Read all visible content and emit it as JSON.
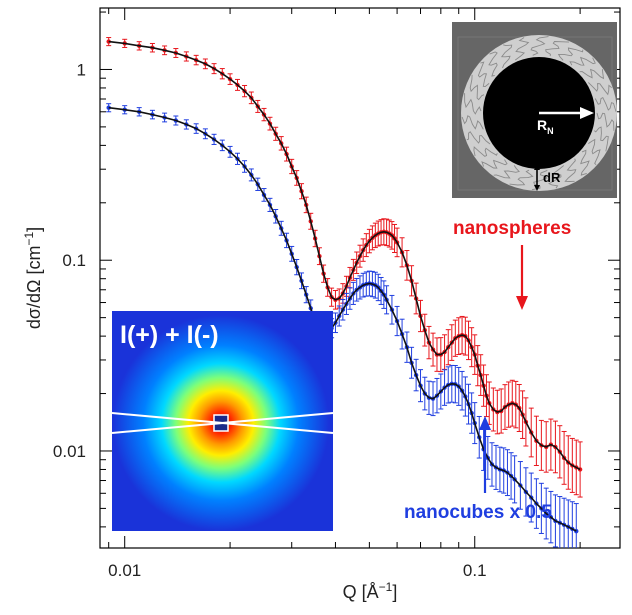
{
  "chart_data": {
    "type": "scatter",
    "xlabel": "Q [Å",
    "xlabel_exp": "−1",
    "xlabel_end": "]",
    "ylabel": "dσ/dΩ [cm",
    "ylabel_exp": "−1",
    "ylabel_end": "]",
    "x_scale": "log",
    "y_scale": "log",
    "xlim": [
      0.0085,
      0.26
    ],
    "ylim": [
      0.0031,
      2.1
    ],
    "x_ticks": [
      {
        "value": 0.01,
        "label": "0.01"
      },
      {
        "value": 0.1,
        "label": "0.1"
      }
    ],
    "y_ticks": [
      {
        "value": 1,
        "label": "1"
      },
      {
        "value": 0.1,
        "label": "0.1"
      },
      {
        "value": 0.01,
        "label": "0.01"
      }
    ],
    "grid": false,
    "series": [
      {
        "name": "nanospheres",
        "color": "#e8161c",
        "fit_color": "#111111",
        "points": [
          [
            0.009,
            1.4
          ],
          [
            0.01,
            1.37
          ],
          [
            0.011,
            1.33
          ],
          [
            0.012,
            1.3
          ],
          [
            0.013,
            1.26
          ],
          [
            0.014,
            1.22
          ],
          [
            0.015,
            1.17
          ],
          [
            0.016,
            1.12
          ],
          [
            0.017,
            1.07
          ],
          [
            0.018,
            1.01
          ],
          [
            0.019,
            0.95
          ],
          [
            0.02,
            0.89
          ],
          [
            0.021,
            0.83
          ],
          [
            0.022,
            0.77
          ],
          [
            0.023,
            0.71
          ],
          [
            0.024,
            0.64
          ],
          [
            0.025,
            0.58
          ],
          [
            0.026,
            0.52
          ],
          [
            0.027,
            0.46
          ],
          [
            0.028,
            0.41
          ],
          [
            0.029,
            0.36
          ],
          [
            0.03,
            0.31
          ],
          [
            0.031,
            0.27
          ],
          [
            0.032,
            0.23
          ],
          [
            0.033,
            0.195
          ],
          [
            0.034,
            0.16
          ],
          [
            0.035,
            0.13
          ],
          [
            0.036,
            0.105
          ],
          [
            0.037,
            0.085
          ],
          [
            0.038,
            0.072
          ],
          [
            0.039,
            0.064
          ],
          [
            0.04,
            0.062
          ],
          [
            0.041,
            0.063
          ],
          [
            0.042,
            0.067
          ],
          [
            0.043,
            0.073
          ],
          [
            0.044,
            0.081
          ],
          [
            0.045,
            0.089
          ],
          [
            0.046,
            0.097
          ],
          [
            0.047,
            0.105
          ],
          [
            0.048,
            0.113
          ],
          [
            0.049,
            0.12
          ],
          [
            0.05,
            0.126
          ],
          [
            0.051,
            0.131
          ],
          [
            0.052,
            0.135
          ],
          [
            0.053,
            0.138
          ],
          [
            0.054,
            0.14
          ],
          [
            0.055,
            0.141
          ],
          [
            0.056,
            0.14
          ],
          [
            0.057,
            0.138
          ],
          [
            0.058,
            0.135
          ],
          [
            0.059,
            0.13
          ],
          [
            0.06,
            0.124
          ],
          [
            0.062,
            0.11
          ],
          [
            0.064,
            0.094
          ],
          [
            0.066,
            0.078
          ],
          [
            0.068,
            0.063
          ],
          [
            0.07,
            0.051
          ],
          [
            0.072,
            0.043
          ],
          [
            0.074,
            0.037
          ],
          [
            0.076,
            0.034
          ],
          [
            0.078,
            0.032
          ],
          [
            0.08,
            0.032
          ],
          [
            0.082,
            0.033
          ],
          [
            0.084,
            0.035
          ],
          [
            0.086,
            0.037
          ],
          [
            0.088,
            0.039
          ],
          [
            0.09,
            0.04
          ],
          [
            0.092,
            0.0405
          ],
          [
            0.094,
            0.04
          ],
          [
            0.096,
            0.038
          ],
          [
            0.098,
            0.035
          ],
          [
            0.1,
            0.032
          ],
          [
            0.102,
            0.028
          ],
          [
            0.104,
            0.025
          ],
          [
            0.106,
            0.022
          ],
          [
            0.108,
            0.0195
          ],
          [
            0.11,
            0.0178
          ],
          [
            0.113,
            0.0165
          ],
          [
            0.116,
            0.016
          ],
          [
            0.119,
            0.0162
          ],
          [
            0.122,
            0.017
          ],
          [
            0.125,
            0.0175
          ],
          [
            0.128,
            0.0178
          ],
          [
            0.131,
            0.0175
          ],
          [
            0.134,
            0.0168
          ],
          [
            0.137,
            0.0155
          ],
          [
            0.14,
            0.0142
          ],
          [
            0.145,
            0.0125
          ],
          [
            0.15,
            0.0113
          ],
          [
            0.155,
            0.0107
          ],
          [
            0.16,
            0.0105
          ],
          [
            0.165,
            0.0108
          ],
          [
            0.17,
            0.0105
          ],
          [
            0.175,
            0.0099
          ],
          [
            0.18,
            0.0092
          ],
          [
            0.185,
            0.0087
          ],
          [
            0.19,
            0.0084
          ],
          [
            0.195,
            0.0082
          ],
          [
            0.2,
            0.008
          ]
        ]
      },
      {
        "name": "nanocubes x 0.5",
        "color": "#1f3ee0",
        "fit_color": "#111111",
        "points": [
          [
            0.009,
            0.63
          ],
          [
            0.01,
            0.615
          ],
          [
            0.011,
            0.6
          ],
          [
            0.012,
            0.58
          ],
          [
            0.013,
            0.56
          ],
          [
            0.014,
            0.54
          ],
          [
            0.015,
            0.515
          ],
          [
            0.016,
            0.49
          ],
          [
            0.017,
            0.46
          ],
          [
            0.018,
            0.43
          ],
          [
            0.019,
            0.4
          ],
          [
            0.02,
            0.37
          ],
          [
            0.021,
            0.34
          ],
          [
            0.022,
            0.31
          ],
          [
            0.023,
            0.28
          ],
          [
            0.024,
            0.25
          ],
          [
            0.025,
            0.22
          ],
          [
            0.026,
            0.195
          ],
          [
            0.027,
            0.17
          ],
          [
            0.028,
            0.147
          ],
          [
            0.029,
            0.127
          ],
          [
            0.03,
            0.108
          ],
          [
            0.031,
            0.092
          ],
          [
            0.032,
            0.078
          ],
          [
            0.033,
            0.066
          ],
          [
            0.034,
            0.056
          ],
          [
            0.035,
            0.048
          ],
          [
            0.036,
            0.044
          ],
          [
            0.037,
            0.042
          ],
          [
            0.038,
            0.042
          ],
          [
            0.039,
            0.044
          ],
          [
            0.04,
            0.047
          ],
          [
            0.041,
            0.051
          ],
          [
            0.042,
            0.055
          ],
          [
            0.043,
            0.059
          ],
          [
            0.044,
            0.063
          ],
          [
            0.045,
            0.067
          ],
          [
            0.046,
            0.07
          ],
          [
            0.047,
            0.072
          ],
          [
            0.048,
            0.074
          ],
          [
            0.049,
            0.075
          ],
          [
            0.05,
            0.0755
          ],
          [
            0.051,
            0.075
          ],
          [
            0.052,
            0.074
          ],
          [
            0.053,
            0.072
          ],
          [
            0.054,
            0.069
          ],
          [
            0.055,
            0.066
          ],
          [
            0.056,
            0.062
          ],
          [
            0.058,
            0.055
          ],
          [
            0.06,
            0.048
          ],
          [
            0.062,
            0.041
          ],
          [
            0.064,
            0.035
          ],
          [
            0.066,
            0.029
          ],
          [
            0.068,
            0.025
          ],
          [
            0.07,
            0.022
          ],
          [
            0.072,
            0.02
          ],
          [
            0.074,
            0.019
          ],
          [
            0.076,
            0.0188
          ],
          [
            0.078,
            0.0195
          ],
          [
            0.08,
            0.0205
          ],
          [
            0.082,
            0.0215
          ],
          [
            0.084,
            0.0222
          ],
          [
            0.086,
            0.0225
          ],
          [
            0.088,
            0.0224
          ],
          [
            0.09,
            0.0218
          ],
          [
            0.092,
            0.0207
          ],
          [
            0.094,
            0.0193
          ],
          [
            0.096,
            0.0176
          ],
          [
            0.098,
            0.0158
          ],
          [
            0.1,
            0.014
          ],
          [
            0.103,
            0.0118
          ],
          [
            0.106,
            0.0102
          ],
          [
            0.109,
            0.0092
          ],
          [
            0.112,
            0.0085
          ],
          [
            0.115,
            0.0082
          ],
          [
            0.118,
            0.008
          ],
          [
            0.121,
            0.0079
          ],
          [
            0.124,
            0.0077
          ],
          [
            0.127,
            0.0074
          ],
          [
            0.13,
            0.0071
          ],
          [
            0.135,
            0.0066
          ],
          [
            0.14,
            0.0061
          ],
          [
            0.145,
            0.0057
          ],
          [
            0.15,
            0.0053
          ],
          [
            0.155,
            0.005
          ],
          [
            0.16,
            0.0047
          ],
          [
            0.165,
            0.0045
          ],
          [
            0.17,
            0.0043
          ],
          [
            0.175,
            0.0042
          ],
          [
            0.18,
            0.0041
          ],
          [
            0.185,
            0.004
          ],
          [
            0.19,
            0.0039
          ],
          [
            0.195,
            0.0038
          ]
        ]
      }
    ],
    "annotations": {
      "nanospheres_label": "nanospheres",
      "nanocubes_label": "nanocubes x 0.5",
      "detector_label": "I(+) + I(-)",
      "schematic_radius_label": "R",
      "schematic_radius_sub": "N",
      "schematic_shell_label": "dR"
    }
  }
}
